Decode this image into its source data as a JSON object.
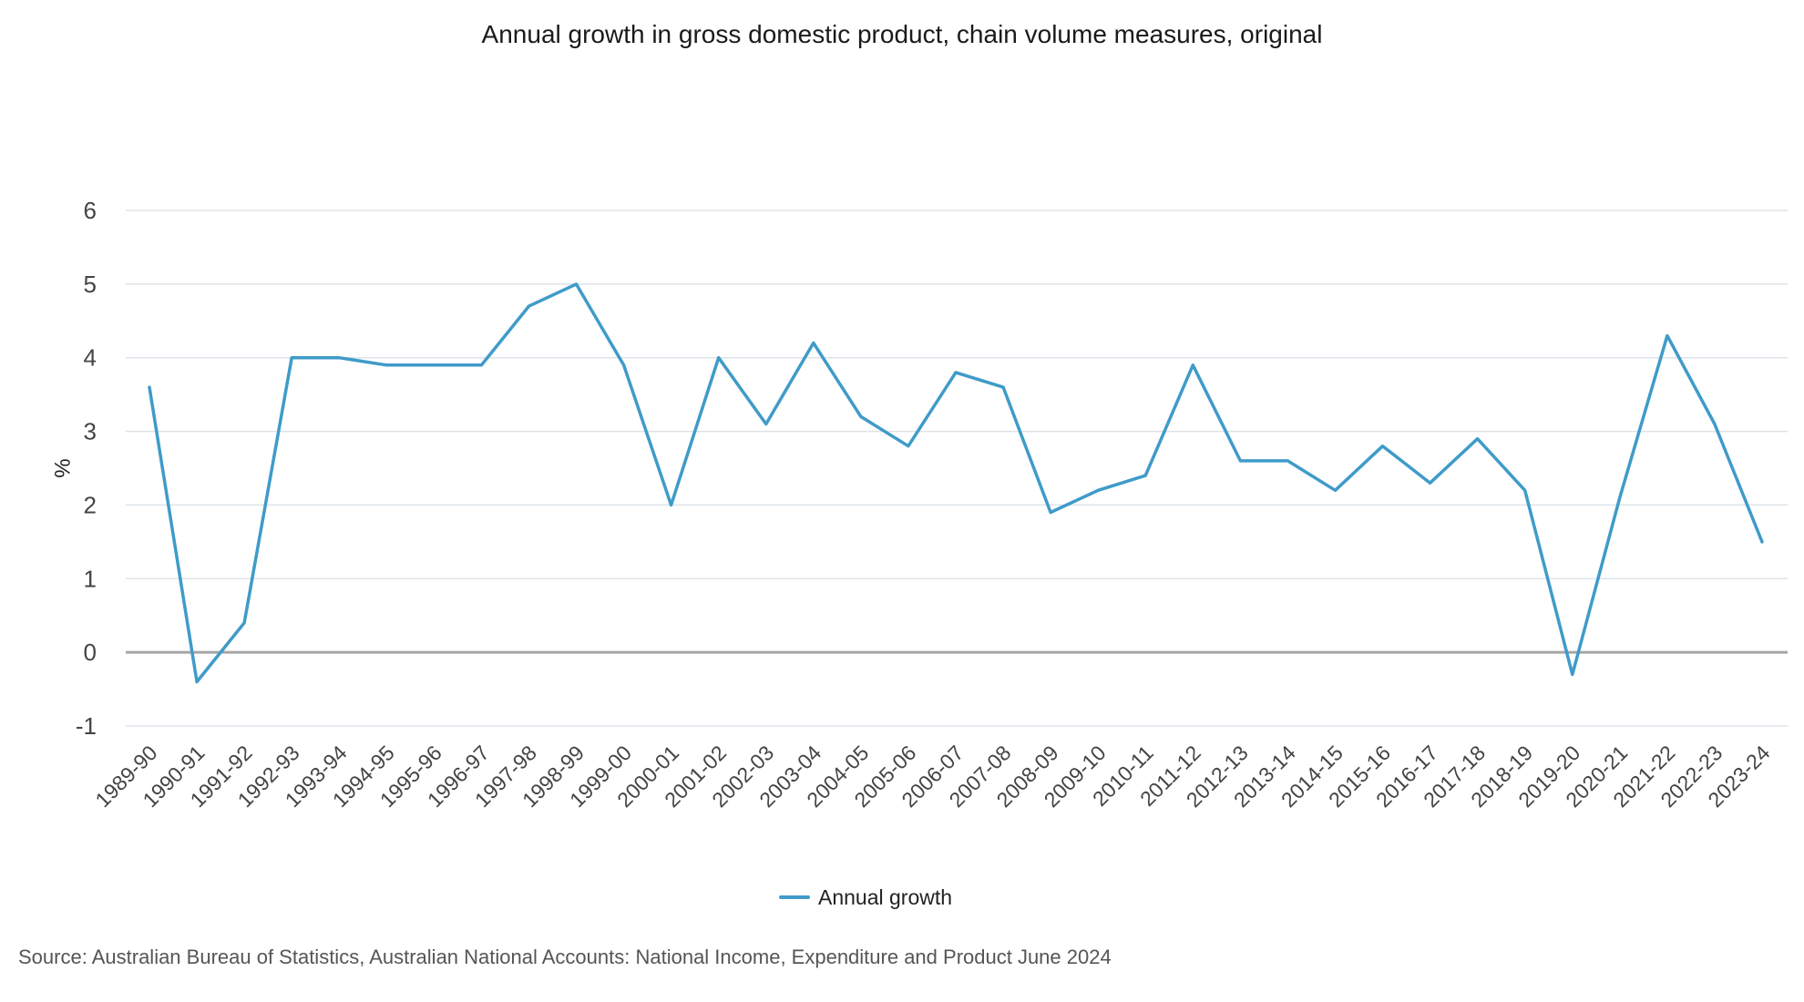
{
  "chart_data": {
    "type": "line",
    "title": "Annual growth in gross domestic product, chain volume measures, original",
    "xlabel": "",
    "ylabel": "%",
    "ylim": [
      -1,
      6
    ],
    "yticks": [
      "6",
      "5",
      "4",
      "3",
      "2",
      "1",
      "0",
      "-1"
    ],
    "grid": true,
    "legend_position": "bottom-center",
    "categories": [
      "1989-90",
      "1990-91",
      "1991-92",
      "1992-93",
      "1993-94",
      "1994-95",
      "1995-96",
      "1996-97",
      "1997-98",
      "1998-99",
      "1999-00",
      "2000-01",
      "2001-02",
      "2002-03",
      "2003-04",
      "2004-05",
      "2005-06",
      "2006-07",
      "2007-08",
      "2008-09",
      "2009-10",
      "2010-11",
      "2011-12",
      "2012-13",
      "2013-14",
      "2014-15",
      "2015-16",
      "2016-17",
      "2017-18",
      "2018-19",
      "2019-20",
      "2020-21",
      "2021-22",
      "2022-23",
      "2023-24"
    ],
    "series": [
      {
        "name": "Annual growth",
        "color": "#3f9bc9",
        "values": [
          3.6,
          -0.4,
          0.4,
          4.0,
          4.0,
          3.9,
          3.9,
          3.9,
          4.7,
          5.0,
          3.9,
          2.0,
          4.0,
          3.1,
          4.2,
          3.2,
          2.8,
          3.8,
          3.6,
          1.9,
          2.2,
          2.4,
          3.9,
          2.6,
          2.6,
          2.2,
          2.8,
          2.3,
          2.9,
          2.2,
          -0.3,
          2.1,
          4.3,
          3.1,
          1.5
        ]
      }
    ],
    "source": "Source: Australian Bureau of Statistics, Australian National Accounts: National Income, Expenditure and Product June 2024"
  }
}
